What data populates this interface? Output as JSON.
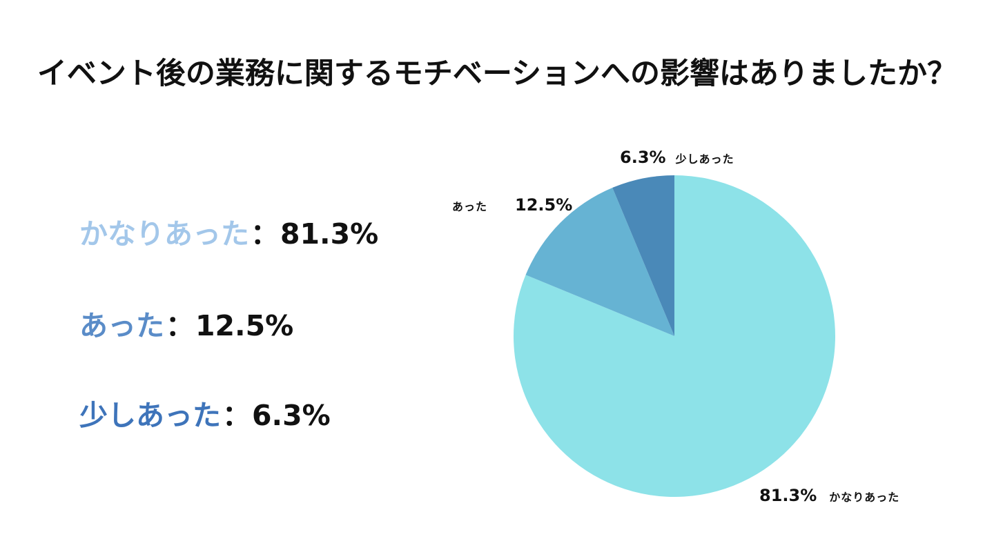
{
  "title": "イベント後の業務に関するモチベーションへの影響はありましたか？",
  "colors": {
    "background": "#ffffff",
    "text": "#111111"
  },
  "legend": {
    "separator": "：",
    "items": [
      {
        "label": "かなりあった",
        "value": "81.3%",
        "label_color": "#a3c7ea"
      },
      {
        "label": "あった",
        "value": "12.5%",
        "label_color": "#5a8cc8"
      },
      {
        "label": "少しあった",
        "value": "6.3%",
        "label_color": "#3e74ba"
      }
    ]
  },
  "chart_data": {
    "type": "pie",
    "title": "イベント後の業務に関するモチベーションへの影響はありましたか？",
    "categories": [
      "かなりあった",
      "あった",
      "少しあった"
    ],
    "values": [
      81.3,
      12.5,
      6.3
    ],
    "percent_labels": [
      "81.3%",
      "12.5%",
      "6.3%"
    ],
    "colors": [
      "#8de2e8",
      "#66b3d3",
      "#4a89b8"
    ],
    "start_angle_deg": 0,
    "direction": "clockwise",
    "legend_position": "outside-callouts"
  },
  "pie_labels": {
    "top": {
      "percent": "6.3%",
      "name": "少しあった"
    },
    "left": {
      "name": "あった",
      "percent": "12.5%"
    },
    "bottom": {
      "percent": "81.3%",
      "name": "かなりあった"
    }
  }
}
